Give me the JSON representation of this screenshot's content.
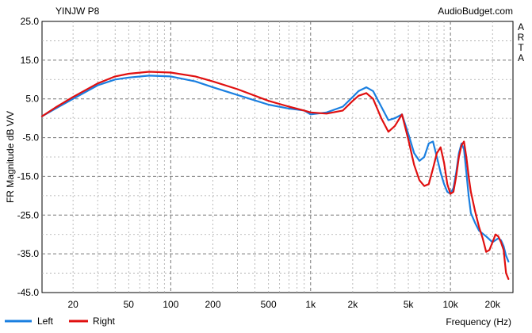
{
  "chart_data": {
    "type": "line",
    "title": "YINJW P8",
    "watermark": "AudioBudget.com",
    "side_label": "ARTA",
    "xlabel": "Frequency (Hz)",
    "ylabel": "FR Magnitude dB V/V",
    "x_scale": "log",
    "xlim": [
      12,
      28000
    ],
    "ylim": [
      -45,
      25
    ],
    "grid": true,
    "legend_position": "bottom-left",
    "y_ticks": [
      25,
      15,
      5,
      -5,
      -15,
      -25,
      -35,
      -45
    ],
    "y_tick_labels": [
      "25.0",
      "15.0",
      "5.0",
      "-5.0",
      "-15.0",
      "-25.0",
      "-35.0",
      "-45.0"
    ],
    "x_ticks": [
      20,
      50,
      100,
      200,
      500,
      1000,
      2000,
      5000,
      10000,
      20000
    ],
    "x_tick_labels": [
      "20",
      "50",
      "100",
      "200",
      "500",
      "1k",
      "2k",
      "5k",
      "10k",
      "20k"
    ],
    "series": [
      {
        "name": "Left",
        "color": "#1a7fe0",
        "x": [
          12,
          15,
          20,
          30,
          40,
          50,
          70,
          100,
          150,
          200,
          300,
          500,
          700,
          900,
          1000,
          1300,
          1700,
          2000,
          2200,
          2500,
          2800,
          3200,
          3600,
          4000,
          4500,
          5000,
          5500,
          6000,
          6500,
          7000,
          7500,
          8000,
          8500,
          9000,
          9500,
          10000,
          10500,
          11000,
          11500,
          12000,
          12500,
          13000,
          13500,
          14000,
          15000,
          16000,
          18000,
          20000,
          22000,
          23000,
          24000,
          25000,
          26000
        ],
        "y": [
          0.5,
          2.5,
          5.0,
          8.5,
          10.0,
          10.5,
          11.0,
          10.8,
          9.5,
          8.0,
          6.0,
          3.5,
          2.5,
          2.0,
          1.0,
          1.5,
          3.0,
          5.5,
          7.0,
          8.0,
          7.0,
          3.0,
          -0.5,
          0.0,
          1.0,
          -4.0,
          -9.0,
          -11.0,
          -10.0,
          -6.5,
          -6.0,
          -10.0,
          -14.0,
          -17.0,
          -19.0,
          -19.5,
          -18.0,
          -14.0,
          -9.0,
          -6.5,
          -8.0,
          -14.0,
          -20.0,
          -24.5,
          -27.0,
          -29.0,
          -30.5,
          -32.0,
          -31.0,
          -31.5,
          -33.0,
          -35.5,
          -37.0
        ]
      },
      {
        "name": "Right",
        "color": "#e01010",
        "x": [
          12,
          15,
          20,
          30,
          40,
          50,
          70,
          100,
          150,
          200,
          300,
          500,
          700,
          900,
          1000,
          1300,
          1700,
          2000,
          2200,
          2500,
          2800,
          3200,
          3600,
          4000,
          4500,
          5000,
          5500,
          6000,
          6500,
          7000,
          7500,
          8000,
          8500,
          9000,
          9500,
          10000,
          10500,
          11000,
          11500,
          12000,
          12500,
          13000,
          13500,
          14000,
          15000,
          16000,
          17000,
          18000,
          19000,
          20000,
          21000,
          22000,
          23000,
          24000,
          25000,
          26000
        ],
        "y": [
          0.5,
          2.8,
          5.5,
          9.0,
          10.8,
          11.5,
          12.0,
          11.8,
          10.8,
          9.5,
          7.5,
          4.5,
          3.0,
          2.0,
          1.5,
          1.2,
          2.0,
          4.5,
          5.8,
          6.5,
          5.0,
          0.0,
          -3.5,
          -2.0,
          1.0,
          -5.5,
          -12.0,
          -16.0,
          -17.5,
          -17.0,
          -13.0,
          -9.0,
          -7.5,
          -11.5,
          -17.0,
          -19.5,
          -19.0,
          -15.0,
          -10.0,
          -7.0,
          -6.0,
          -10.0,
          -15.0,
          -19.0,
          -24.0,
          -28.0,
          -31.0,
          -34.5,
          -34.0,
          -32.0,
          -30.0,
          -30.5,
          -32.0,
          -34.0,
          -40.0,
          -41.5
        ]
      }
    ]
  }
}
